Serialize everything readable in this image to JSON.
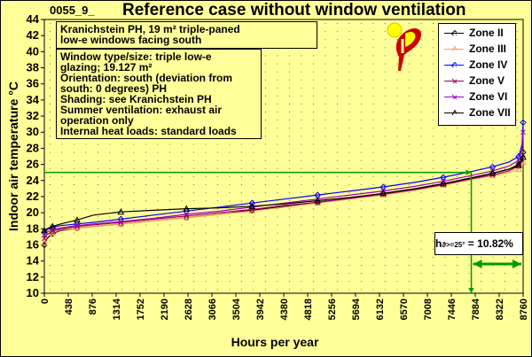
{
  "case_id": "0055_9_",
  "title": "Reference case without window ventilation",
  "notes": {
    "building": "Kranichstein PH, 19 m² triple-paned\nlow-e windows facing south",
    "details": "Window type/size: triple low-e\nglazing; 19.127 m²\nOrientation: south (deviation from\nsouth: 0 degrees) PH\nShading: see Kranichstein PH\nSummer ventilation: exhaust air\noperation only\nInternal heat loads: standard loads"
  },
  "indicator": {
    "symbol": "h",
    "subscript": "ϑ>=25°",
    "value_text": "= 10.82%",
    "threshold_c": 25,
    "threshold_hour": 7812,
    "percent": 10.82,
    "color": "#009900"
  },
  "logo": {
    "icon": "passive-house-logo",
    "colors": [
      "#ffff00",
      "#cc0000",
      "#ffffff"
    ]
  },
  "chart_data": {
    "type": "line",
    "title": "Reference case without window ventilation",
    "xlabel": "Hours per year",
    "ylabel": "Indoor air temperature °C",
    "xlim": [
      0,
      8760
    ],
    "ylim": [
      10,
      44
    ],
    "xticks": [
      0,
      438,
      876,
      1314,
      1752,
      2190,
      2628,
      3066,
      3504,
      3942,
      4380,
      4818,
      5256,
      5694,
      6132,
      6570,
      7008,
      7446,
      7884,
      8322,
      8760
    ],
    "yticks": [
      10,
      12,
      14,
      16,
      18,
      20,
      22,
      24,
      26,
      28,
      30,
      32,
      34,
      36,
      38,
      40,
      42,
      44
    ],
    "grid": "dotted",
    "legend": "top-right",
    "background": "#ffff99",
    "series": [
      {
        "name": "Zone II",
        "color": "#000000",
        "marker": "diamond",
        "x": [
          0,
          50,
          150,
          300,
          600,
          900,
          1400,
          2000,
          2600,
          3200,
          3800,
          4400,
          5000,
          5600,
          6200,
          6800,
          7300,
          7800,
          8200,
          8500,
          8680,
          8740,
          8760
        ],
        "y": [
          16.0,
          16.8,
          17.4,
          17.8,
          18.1,
          18.3,
          18.6,
          19.0,
          19.4,
          19.8,
          20.3,
          20.8,
          21.3,
          21.8,
          22.4,
          23.0,
          23.6,
          24.3,
          24.9,
          25.4,
          26.0,
          26.8,
          27.5
        ]
      },
      {
        "name": "Zone III",
        "color": "#ff9966",
        "marker": "triangle",
        "x": [
          0,
          50,
          150,
          300,
          600,
          900,
          1400,
          2000,
          2600,
          3200,
          3800,
          4400,
          5000,
          5600,
          6200,
          6800,
          7300,
          7800,
          8200,
          8500,
          8680,
          8740,
          8760
        ],
        "y": [
          16.3,
          17.0,
          17.5,
          17.9,
          18.1,
          18.3,
          18.6,
          19.0,
          19.4,
          19.8,
          20.2,
          20.7,
          21.2,
          21.7,
          22.2,
          22.8,
          23.4,
          24.1,
          24.6,
          25.0,
          25.4,
          26.0,
          26.3
        ]
      },
      {
        "name": "Zone IV",
        "color": "#0000ff",
        "marker": "diamond",
        "x": [
          0,
          50,
          150,
          300,
          600,
          900,
          1400,
          2000,
          2600,
          3200,
          3800,
          4400,
          5000,
          5600,
          6200,
          6800,
          7300,
          7800,
          8200,
          8500,
          8680,
          8740,
          8760
        ],
        "y": [
          17.5,
          17.9,
          18.2,
          18.4,
          18.6,
          18.8,
          19.2,
          19.7,
          20.2,
          20.7,
          21.2,
          21.7,
          22.2,
          22.7,
          23.2,
          23.8,
          24.4,
          25.1,
          25.7,
          26.3,
          27.0,
          28.5,
          31.2
        ]
      },
      {
        "name": "Zone V",
        "color": "#990066",
        "marker": "x",
        "x": [
          0,
          50,
          150,
          300,
          600,
          900,
          1400,
          2000,
          2600,
          3200,
          3800,
          4400,
          5000,
          5600,
          6200,
          6800,
          7300,
          7800,
          8200,
          8500,
          8680,
          8740,
          8760
        ],
        "y": [
          16.8,
          17.3,
          17.7,
          18.0,
          18.3,
          18.5,
          18.8,
          19.2,
          19.6,
          20.0,
          20.4,
          20.9,
          21.3,
          21.8,
          22.3,
          22.9,
          23.5,
          24.2,
          24.7,
          25.2,
          25.8,
          26.5,
          27.2
        ]
      },
      {
        "name": "Zone VI",
        "color": "#9900cc",
        "marker": "x",
        "x": [
          0,
          50,
          150,
          300,
          600,
          900,
          1400,
          2000,
          2600,
          3200,
          3800,
          4400,
          5000,
          5600,
          6200,
          6800,
          7300,
          7800,
          8200,
          8500,
          8680,
          8740,
          8760
        ],
        "y": [
          17.2,
          17.6,
          17.9,
          18.1,
          18.4,
          18.6,
          18.9,
          19.3,
          19.8,
          20.2,
          20.7,
          21.2,
          21.7,
          22.2,
          22.7,
          23.3,
          23.9,
          24.6,
          25.2,
          25.8,
          26.5,
          27.8,
          30.0
        ]
      },
      {
        "name": "Zone VII",
        "color": "#000000",
        "marker": "triangle",
        "x": [
          0,
          50,
          150,
          300,
          600,
          900,
          1400,
          2000,
          2600,
          3200,
          3800,
          4400,
          5000,
          5600,
          6200,
          6800,
          7300,
          7800,
          8200,
          8500,
          8680,
          8740,
          8760
        ],
        "y": [
          17.8,
          18.0,
          18.3,
          18.6,
          19.1,
          19.7,
          20.1,
          20.3,
          20.5,
          20.6,
          20.8,
          21.1,
          21.5,
          21.9,
          22.4,
          23.0,
          23.6,
          24.3,
          24.9,
          25.4,
          25.9,
          26.4,
          26.9
        ]
      }
    ]
  }
}
